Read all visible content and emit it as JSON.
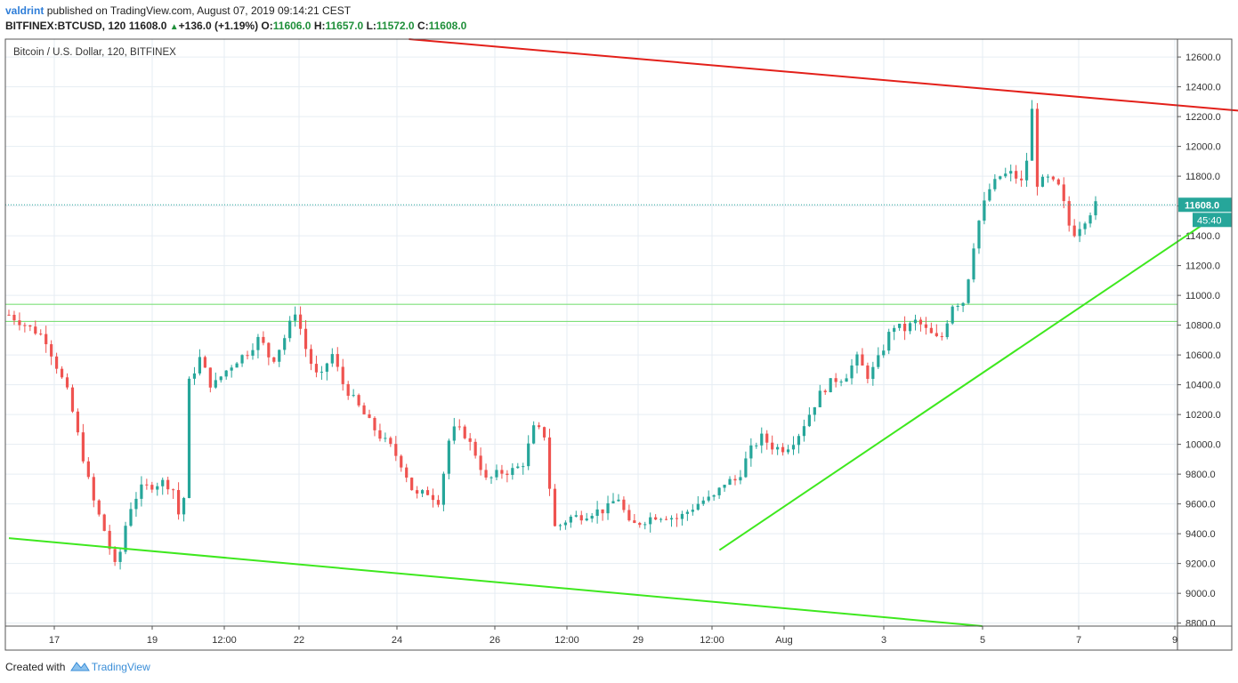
{
  "header": {
    "author": "valdrint",
    "published_text": "published on TradingView.com, August 07, 2019 09:14:21 CEST",
    "symbol": "BITFINEX:BTCUSD, 120",
    "price": "11608.0",
    "change": "+136.0 (+1.19%)",
    "o_label": "O:",
    "o_value": "11606.0",
    "h_label": "H:",
    "h_value": "11657.0",
    "l_label": "L:",
    "l_value": "11572.0",
    "c_label": "C:",
    "c_value": "11608.0"
  },
  "series_title": "Bitcoin / U.S. Dollar, 120, BITFINEX",
  "footer": {
    "created_with": "Created with",
    "brand": "TradingView"
  },
  "colors": {
    "up": "#26a69a",
    "down": "#ef5350",
    "resistance": "#e3201a",
    "support": "#3ee81e",
    "zone": "#7ee07a",
    "price_tag": "#26a69a",
    "grid": "#e6edf3"
  },
  "chart_data": {
    "type": "candlestick",
    "x_ticks": [
      "17",
      "19",
      "12:00",
      "22",
      "24",
      "26",
      "12:00",
      "29",
      "12:00",
      "Aug",
      "3",
      "5",
      "7",
      "9"
    ],
    "y_ticks": [
      "8800.0",
      "9000.0",
      "9200.0",
      "9400.0",
      "9600.0",
      "9800.0",
      "10000.0",
      "10200.0",
      "10400.0",
      "10600.0",
      "10800.0",
      "11000.0",
      "11200.0",
      "11400.0",
      "11600.0",
      "11800.0",
      "12000.0",
      "12200.0",
      "12400.0",
      "12600.0"
    ],
    "ylim": [
      8780,
      12720
    ],
    "last_price": 11608.0,
    "last_price_label": "11608.0",
    "countdown_label": "45:40",
    "zone": [
      10825,
      10940
    ],
    "path": [
      [
        0,
        10870
      ],
      [
        3,
        10720
      ],
      [
        5,
        10330
      ],
      [
        7,
        9640
      ],
      [
        8,
        9420
      ],
      [
        9,
        9150
      ],
      [
        10,
        9550
      ],
      [
        11,
        9700
      ],
      [
        13,
        9750
      ],
      [
        14,
        9680
      ],
      [
        14.5,
        9320
      ],
      [
        15,
        10400
      ],
      [
        16,
        10580
      ],
      [
        17,
        10380
      ],
      [
        18,
        10480
      ],
      [
        19,
        10560
      ],
      [
        20,
        10620
      ],
      [
        21,
        10720
      ],
      [
        22,
        10550
      ],
      [
        23,
        10700
      ],
      [
        24,
        10900
      ],
      [
        25,
        10600
      ],
      [
        26,
        10420
      ],
      [
        27,
        10620
      ],
      [
        28,
        10400
      ],
      [
        30,
        10170
      ],
      [
        31,
        10060
      ],
      [
        32,
        9980
      ],
      [
        33,
        9850
      ],
      [
        34,
        9650
      ],
      [
        35,
        9680
      ],
      [
        36,
        9620
      ],
      [
        37,
        10100
      ],
      [
        38,
        10090
      ],
      [
        39,
        9950
      ],
      [
        40,
        9750
      ],
      [
        41,
        9810
      ],
      [
        42,
        9820
      ],
      [
        43,
        9860
      ],
      [
        44,
        10120
      ],
      [
        45,
        10050
      ],
      [
        45.5,
        9440
      ],
      [
        46,
        9450
      ],
      [
        47,
        9510
      ],
      [
        48,
        9520
      ],
      [
        49,
        9550
      ],
      [
        50,
        9560
      ],
      [
        51,
        9650
      ],
      [
        52,
        9450
      ],
      [
        53,
        9480
      ],
      [
        54,
        9520
      ],
      [
        55,
        9520
      ],
      [
        56,
        9500
      ],
      [
        57,
        9560
      ],
      [
        58,
        9620
      ],
      [
        59,
        9640
      ],
      [
        60,
        9750
      ],
      [
        61,
        9760
      ],
      [
        62,
        9950
      ],
      [
        63,
        10050
      ],
      [
        64,
        9980
      ],
      [
        65,
        9970
      ],
      [
        66,
        10050
      ],
      [
        67,
        10200
      ],
      [
        68,
        10350
      ],
      [
        69,
        10430
      ],
      [
        70,
        10450
      ],
      [
        71,
        10580
      ],
      [
        72,
        10450
      ],
      [
        73,
        10600
      ],
      [
        74,
        10800
      ],
      [
        75,
        10770
      ],
      [
        76,
        10830
      ],
      [
        77,
        10750
      ],
      [
        78,
        10690
      ],
      [
        79,
        10940
      ],
      [
        80,
        10960
      ],
      [
        81,
        11440
      ],
      [
        82,
        11700
      ],
      [
        83,
        11800
      ],
      [
        84,
        11820
      ],
      [
        85,
        11740
      ],
      [
        85.7,
        12260
      ],
      [
        86,
        11750
      ],
      [
        87,
        11780
      ],
      [
        88,
        11720
      ],
      [
        89,
        11400
      ],
      [
        90,
        11500
      ],
      [
        91,
        11608
      ]
    ],
    "candle_index_range": [
      0,
      91
    ],
    "annotations": [
      {
        "type": "line",
        "name": "resistance-trendline",
        "color": "resistance",
        "from": [
          33.5,
          12720
        ],
        "to": [
          103,
          12240
        ]
      },
      {
        "type": "line",
        "name": "lower-channel-line",
        "color": "support",
        "from": [
          0,
          9370
        ],
        "to": [
          81.5,
          8780
        ]
      },
      {
        "type": "arrow",
        "name": "support-trendline-arrow",
        "color": "support",
        "from": [
          59.5,
          9290
        ],
        "to": [
          101,
          11530
        ]
      }
    ]
  }
}
